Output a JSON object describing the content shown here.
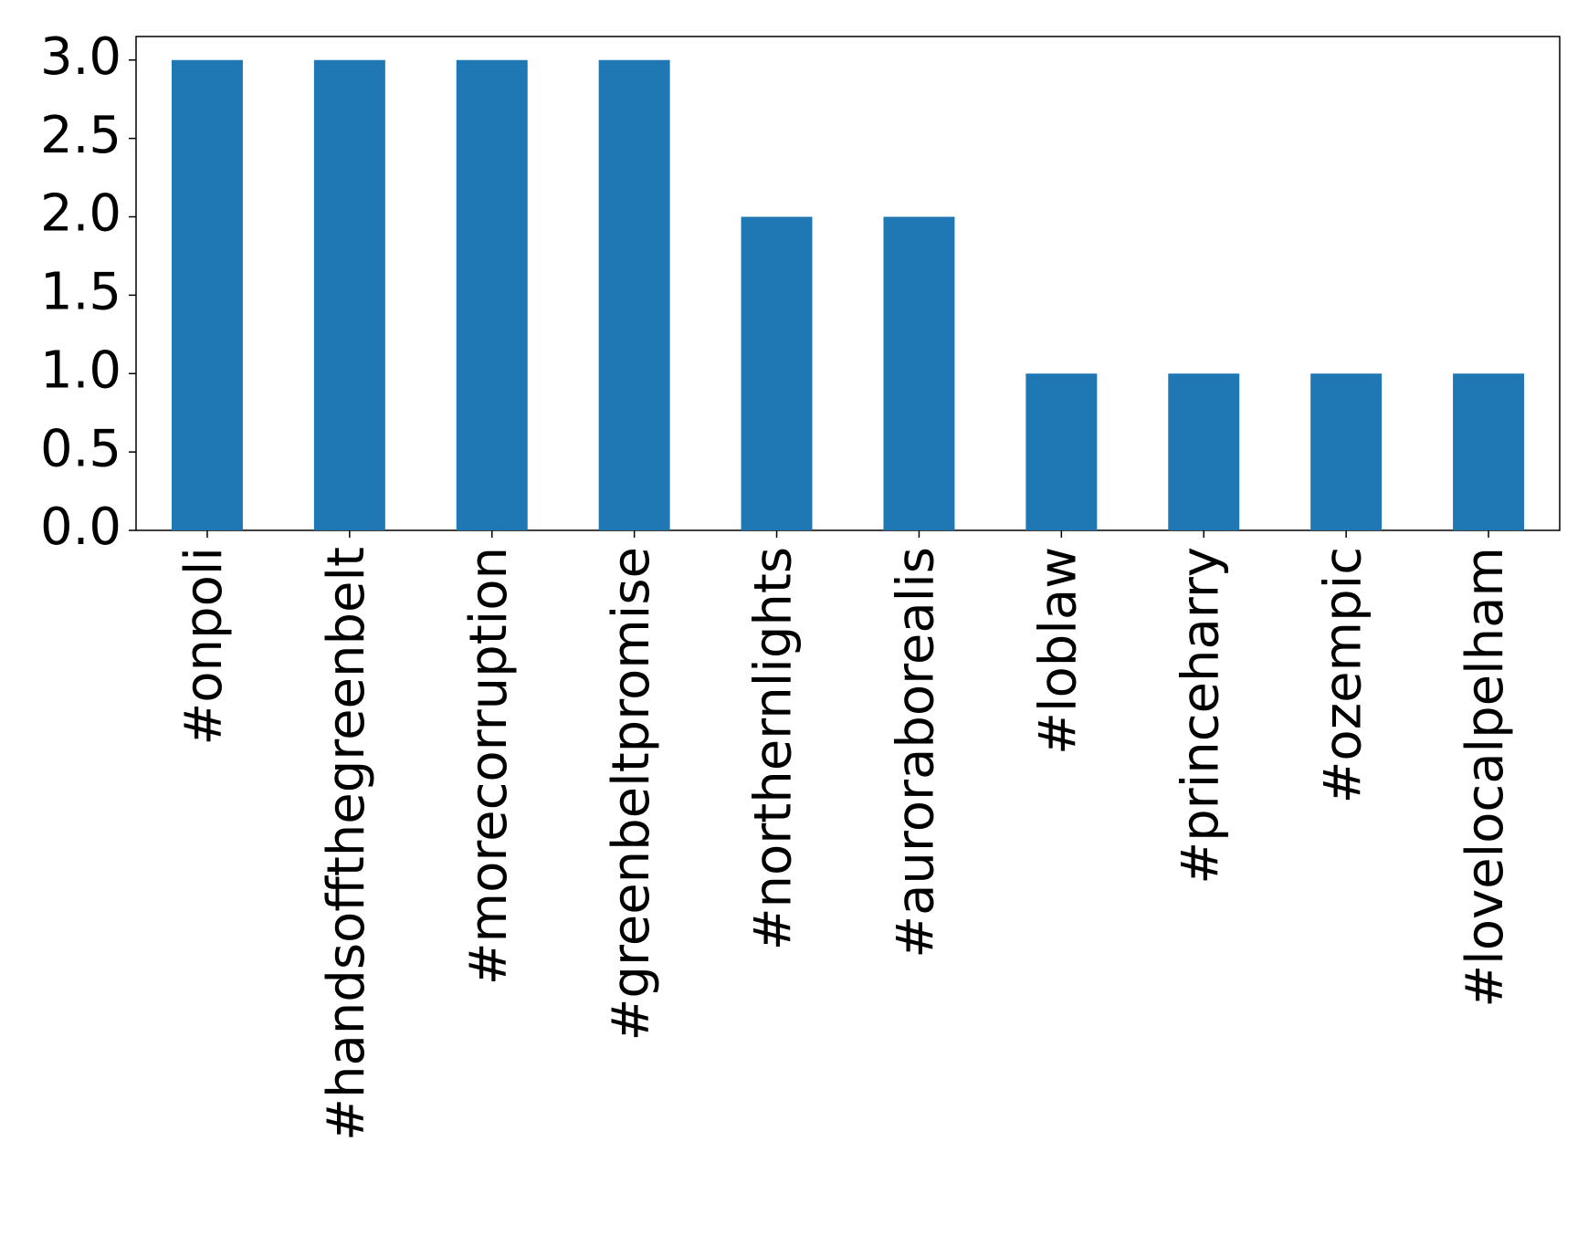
{
  "chart_data": {
    "type": "bar",
    "categories": [
      "#onpoli",
      "#handsoffthegreenbelt",
      "#morecorruption",
      "#greenbeltpromise",
      "#northernlights",
      "#auroraborealis",
      "#loblaw",
      "#princeharry",
      "#ozempic",
      "#lovelocalpelham"
    ],
    "values": [
      3,
      3,
      3,
      3,
      2,
      2,
      1,
      1,
      1,
      1
    ],
    "color": "#1f77b4",
    "ylim": [
      0,
      3.15
    ],
    "yticks": [
      {
        "value": 0,
        "label": "0.0"
      },
      0.5,
      {
        "value": 1,
        "label": "1.0"
      },
      1.5,
      {
        "value": 2,
        "label": "2.0"
      },
      2.5,
      {
        "value": 3,
        "label": "3.0"
      }
    ],
    "grid": false
  }
}
